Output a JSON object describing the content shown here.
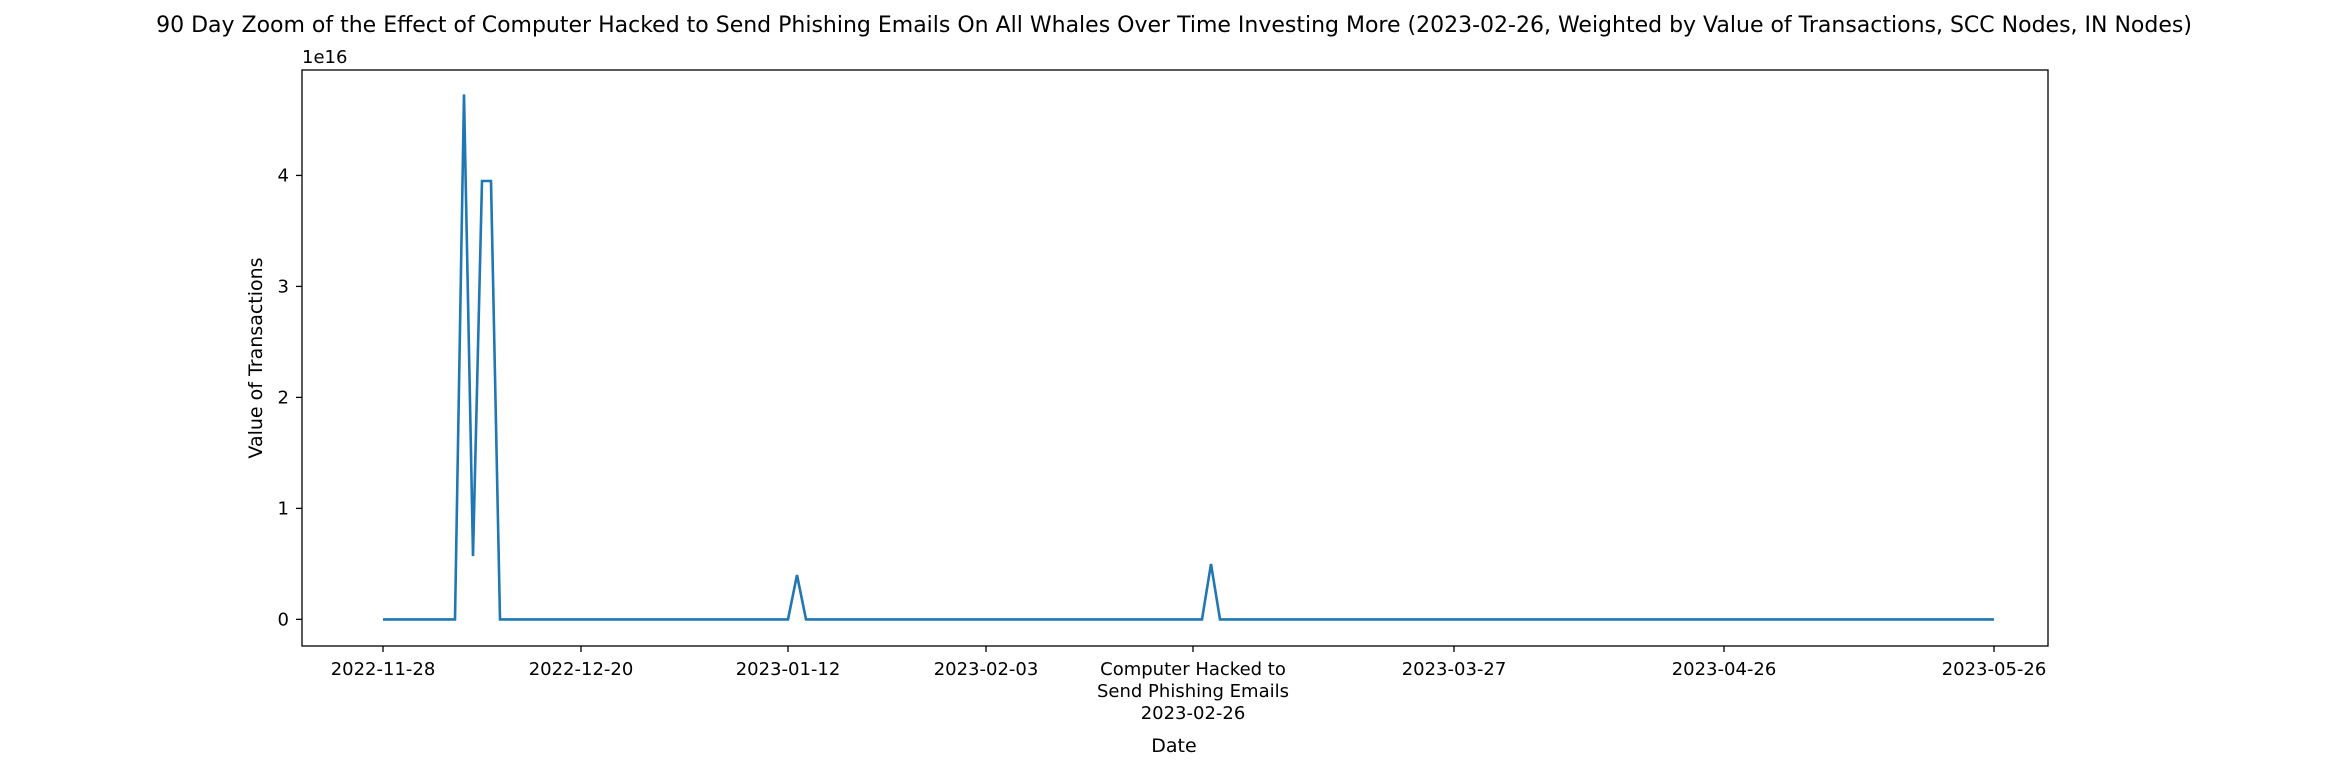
{
  "chart_data": {
    "type": "line",
    "title": "90 Day Zoom of the Effect of Computer Hacked to Send Phishing Emails On All Whales Over Time Investing More (2023-02-26, Weighted by Value of Transactions, SCC Nodes, IN Nodes)",
    "xlabel": "Date",
    "ylabel": "Value of Transactions",
    "y_offset_text": "1e16",
    "y_multiplier": 1e+16,
    "ylim": [
      -0.24,
      4.95
    ],
    "xlim": [
      "2022-11-19",
      "2023-06-01"
    ],
    "y_ticks": [
      0,
      1,
      2,
      3,
      4
    ],
    "x_ticks": [
      {
        "date": "2022-11-28",
        "label": "2022-11-28"
      },
      {
        "date": "2022-12-20",
        "label": "2022-12-20"
      },
      {
        "date": "2023-01-12",
        "label": "2023-01-12"
      },
      {
        "date": "2023-02-03",
        "label": "2023-02-03"
      },
      {
        "date": "2023-02-26",
        "label": "Computer Hacked to\nSend Phishing Emails\n2023-02-26"
      },
      {
        "date": "2023-03-27",
        "label": "2023-03-27"
      },
      {
        "date": "2023-04-26",
        "label": "2023-04-26"
      },
      {
        "date": "2023-05-26",
        "label": "2023-05-26"
      }
    ],
    "grid": false,
    "series": [
      {
        "color": "#1f77b4",
        "x": [
          "2022-11-28",
          "2022-12-06",
          "2022-12-07",
          "2022-12-08",
          "2022-12-09",
          "2022-12-10",
          "2022-12-11",
          "2022-12-12",
          "2023-01-12",
          "2023-01-13",
          "2023-01-14",
          "2023-02-27",
          "2023-02-28",
          "2023-03-01",
          "2023-05-26"
        ],
        "y": [
          0,
          0,
          4.73,
          0.57,
          3.95,
          3.95,
          0,
          0,
          0,
          0.4,
          0,
          0,
          0.5,
          0,
          0
        ]
      }
    ]
  }
}
